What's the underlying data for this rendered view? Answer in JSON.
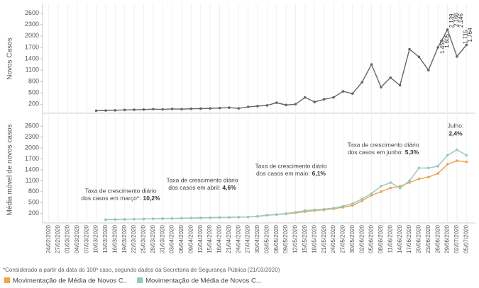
{
  "chart_data": [
    {
      "type": "line",
      "ylabel": "Novos Casos",
      "categories": [
        "24/02/2020",
        "27/02/2020",
        "01/03/2020",
        "04/03/2020",
        "07/03/2020",
        "10/03/2020",
        "13/03/2020",
        "16/03/2020",
        "19/03/2020",
        "22/03/2020",
        "25/03/2020",
        "28/03/2020",
        "31/03/2020",
        "03/04/2020",
        "06/04/2020",
        "09/04/2020",
        "12/04/2020",
        "15/04/2020",
        "18/04/2020",
        "21/04/2020",
        "24/04/2020",
        "27/04/2020",
        "30/04/2020",
        "03/05/2020",
        "06/05/2020",
        "09/05/2020",
        "12/05/2020",
        "15/05/2020",
        "18/05/2020",
        "21/05/2020",
        "24/05/2020",
        "27/05/2020",
        "30/05/2020",
        "02/06/2020",
        "05/06/2020",
        "08/06/2020",
        "11/06/2020",
        "14/06/2020",
        "17/06/2020",
        "20/06/2020",
        "23/06/2020",
        "26/06/2020",
        "29/06/2020",
        "02/07/2020",
        "05/07/2020"
      ],
      "series": [
        {
          "name": "Novos Casos",
          "color": "#666666",
          "values": [
            null,
            null,
            null,
            null,
            null,
            30,
            35,
            40,
            50,
            55,
            60,
            70,
            65,
            75,
            70,
            80,
            85,
            90,
            100,
            110,
            90,
            130,
            150,
            170,
            240,
            180,
            200,
            380,
            260,
            330,
            380,
            540,
            480,
            780,
            1250,
            650,
            900,
            700,
            1650,
            1450,
            1100,
            1700,
            2166,
            1459,
            1764
          ]
        }
      ],
      "annotations": [
        {
          "label": "1.459",
          "value": 1459
        },
        {
          "label": "1.605",
          "value": 1605
        },
        {
          "label": "2.139",
          "value": 2139
        },
        {
          "label": "2.166",
          "value": 2166
        },
        {
          "label": "2.146",
          "value": 2146
        },
        {
          "label": "1.715",
          "value": 1715
        },
        {
          "label": "1.764",
          "value": 1764
        }
      ],
      "ylim": [
        0,
        2800
      ],
      "yticks": [
        200,
        500,
        800,
        1100,
        1400,
        1700,
        2000,
        2300,
        2600
      ]
    },
    {
      "type": "line",
      "ylabel": "Média móvel de novos casos",
      "series": [
        {
          "name": "Movimentação de Média de Novos C..",
          "color": "#f0a24c",
          "values": [
            null,
            null,
            null,
            null,
            null,
            null,
            30,
            35,
            40,
            45,
            50,
            55,
            60,
            65,
            70,
            75,
            80,
            85,
            90,
            95,
            100,
            105,
            120,
            150,
            170,
            190,
            220,
            250,
            280,
            300,
            330,
            370,
            420,
            550,
            700,
            800,
            900,
            950,
            1050,
            1150,
            1200,
            1300,
            1550,
            1650,
            1620
          ]
        },
        {
          "name": "Movimentação de Média de Novos C...",
          "color": "#8fcbc0",
          "values": [
            null,
            null,
            null,
            null,
            null,
            null,
            30,
            35,
            40,
            45,
            50,
            55,
            60,
            65,
            70,
            75,
            80,
            85,
            90,
            95,
            100,
            105,
            125,
            155,
            175,
            200,
            235,
            280,
            300,
            320,
            350,
            400,
            470,
            600,
            750,
            950,
            1050,
            900,
            1100,
            1450,
            1450,
            1500,
            1800,
            1950,
            1800
          ]
        }
      ],
      "notes": [
        {
          "line1": "Taxa de crescimento diário",
          "line2": "dos casos em março*:",
          "rate": "10,2%"
        },
        {
          "line1": "Taxa de crescimento diário",
          "line2": "dos casos em abril:",
          "rate": "4,6%"
        },
        {
          "line1": "Taxa de crescimento diário",
          "line2": "dos casos em maio:",
          "rate": "6,1%"
        },
        {
          "line1": "Taxa de crescimento diário",
          "line2": "dos casos em junho:",
          "rate": "5,3%"
        },
        {
          "line1": "Julho:",
          "line2": "",
          "rate": "2,4%"
        }
      ],
      "ylim": [
        0,
        2800
      ],
      "yticks": [
        200,
        500,
        800,
        1100,
        1400,
        1700,
        2000,
        2300,
        2600
      ]
    }
  ],
  "footnote": "*Considerado a partir da data do 100º caso, segundo dados da Secretaria de Segurança Pública (21/03/2020)"
}
